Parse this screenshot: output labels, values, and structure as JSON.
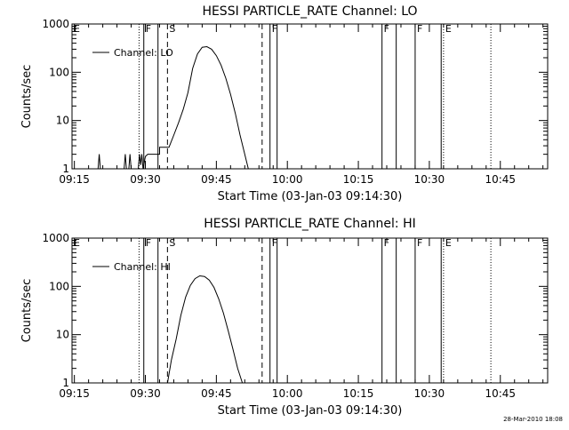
{
  "chart_data": [
    {
      "type": "line",
      "title": "HESSI PARTICLE_RATE Channel: LO",
      "xlabel": "Start Time (03-Jan-03 09:14:30)",
      "ylabel": "Counts/sec",
      "yscale": "log",
      "xlim": [
        "09:14:30",
        "10:55:00"
      ],
      "ylim": [
        1,
        1000
      ],
      "x_tick_labels": [
        "09:15",
        "09:30",
        "09:45",
        "10:00",
        "10:15",
        "10:30",
        "10:45"
      ],
      "y_tick_labels": [
        "1",
        "10",
        "100",
        "1000"
      ],
      "grid": false,
      "legend": {
        "placement": "top-left",
        "entries": [
          "Channel: LO"
        ]
      },
      "series": [
        {
          "name": "Channel: LO",
          "color": "#000000",
          "points": [
            [
              "09:20:00",
              1
            ],
            [
              "09:20:15",
              2
            ],
            [
              "09:20:30",
              1
            ],
            [
              "09:25:30",
              1
            ],
            [
              "09:25:45",
              2
            ],
            [
              "09:26:00",
              1
            ],
            [
              "09:26:30",
              1
            ],
            [
              "09:26:45",
              2
            ],
            [
              "09:27:00",
              1
            ],
            [
              "09:28:30",
              1
            ],
            [
              "09:28:45",
              2
            ],
            [
              "09:29:00",
              1.2
            ],
            [
              "09:29:15",
              2
            ],
            [
              "09:29:30",
              1
            ],
            [
              "09:30:00",
              1.8
            ],
            [
              "09:30:30",
              2
            ],
            [
              "09:33:00",
              2
            ],
            [
              "09:33:00",
              2.8
            ],
            [
              "09:35:00",
              2.8
            ],
            [
              "09:36:00",
              5
            ],
            [
              "09:37:00",
              9
            ],
            [
              "09:38:00",
              17
            ],
            [
              "09:39:00",
              38
            ],
            [
              "09:40:00",
              120
            ],
            [
              "09:41:00",
              240
            ],
            [
              "09:42:00",
              330
            ],
            [
              "09:43:00",
              340
            ],
            [
              "09:44:00",
              300
            ],
            [
              "09:45:00",
              220
            ],
            [
              "09:46:00",
              140
            ],
            [
              "09:47:00",
              75
            ],
            [
              "09:48:00",
              35
            ],
            [
              "09:49:00",
              14
            ],
            [
              "09:50:00",
              5
            ],
            [
              "09:51:00",
              2
            ],
            [
              "09:51:45",
              1
            ]
          ]
        }
      ],
      "flags": [
        {
          "label": "E",
          "time": "09:14:30",
          "style": "dotted"
        },
        {
          "label": "",
          "time": "09:28:40",
          "style": "dotted"
        },
        {
          "label": "F",
          "time": "09:29:40",
          "style": "solid"
        },
        {
          "label": "",
          "time": "09:32:40",
          "style": "solid"
        },
        {
          "label": "S",
          "time": "09:34:40",
          "style": "dashed"
        },
        {
          "label": "",
          "time": "09:54:40",
          "style": "dashed"
        },
        {
          "label": "F",
          "time": "09:56:20",
          "style": "solid"
        },
        {
          "label": "",
          "time": "09:57:50",
          "style": "solid"
        },
        {
          "label": "F",
          "time": "10:20:00",
          "style": "solid"
        },
        {
          "label": "",
          "time": "10:23:00",
          "style": "solid"
        },
        {
          "label": "F",
          "time": "10:27:00",
          "style": "solid"
        },
        {
          "label": "",
          "time": "10:32:30",
          "style": "solid"
        },
        {
          "label": "E",
          "time": "10:33:00",
          "style": "dotted"
        },
        {
          "label": "",
          "time": "10:43:00",
          "style": "dotted"
        }
      ]
    },
    {
      "type": "line",
      "title": "HESSI PARTICLE_RATE Channel: HI",
      "xlabel": "Start Time (03-Jan-03 09:14:30)",
      "ylabel": "Counts/sec",
      "yscale": "log",
      "xlim": [
        "09:14:30",
        "10:55:00"
      ],
      "ylim": [
        1,
        1000
      ],
      "x_tick_labels": [
        "09:15",
        "09:30",
        "09:45",
        "10:00",
        "10:15",
        "10:30",
        "10:45"
      ],
      "y_tick_labels": [
        "1",
        "10",
        "100",
        "1000"
      ],
      "grid": false,
      "legend": {
        "placement": "top-left",
        "entries": [
          "Channel: HI"
        ]
      },
      "series": [
        {
          "name": "Channel: HI",
          "color": "#000000",
          "points": [
            [
              "09:34:40",
              1
            ],
            [
              "09:35:30",
              3
            ],
            [
              "09:36:30",
              8
            ],
            [
              "09:37:30",
              25
            ],
            [
              "09:38:30",
              60
            ],
            [
              "09:39:30",
              105
            ],
            [
              "09:40:30",
              145
            ],
            [
              "09:41:30",
              165
            ],
            [
              "09:42:30",
              160
            ],
            [
              "09:43:30",
              135
            ],
            [
              "09:44:30",
              95
            ],
            [
              "09:45:30",
              55
            ],
            [
              "09:46:30",
              28
            ],
            [
              "09:47:30",
              12
            ],
            [
              "09:48:30",
              5
            ],
            [
              "09:49:30",
              2
            ],
            [
              "09:50:30",
              1
            ]
          ]
        }
      ],
      "flags": [
        {
          "label": "E",
          "time": "09:14:30",
          "style": "dotted"
        },
        {
          "label": "",
          "time": "09:28:40",
          "style": "dotted"
        },
        {
          "label": "F",
          "time": "09:29:40",
          "style": "solid"
        },
        {
          "label": "",
          "time": "09:32:40",
          "style": "solid"
        },
        {
          "label": "S",
          "time": "09:34:40",
          "style": "dashed"
        },
        {
          "label": "",
          "time": "09:54:40",
          "style": "dashed"
        },
        {
          "label": "F",
          "time": "09:56:20",
          "style": "solid"
        },
        {
          "label": "",
          "time": "09:57:50",
          "style": "solid"
        },
        {
          "label": "F",
          "time": "10:20:00",
          "style": "solid"
        },
        {
          "label": "",
          "time": "10:23:00",
          "style": "solid"
        },
        {
          "label": "F",
          "time": "10:27:00",
          "style": "solid"
        },
        {
          "label": "",
          "time": "10:32:30",
          "style": "solid"
        },
        {
          "label": "E",
          "time": "10:33:00",
          "style": "dotted"
        },
        {
          "label": "",
          "time": "10:43:00",
          "style": "dotted"
        }
      ]
    }
  ],
  "footer": {
    "timestamp": "28-Mar-2010 18:08"
  }
}
